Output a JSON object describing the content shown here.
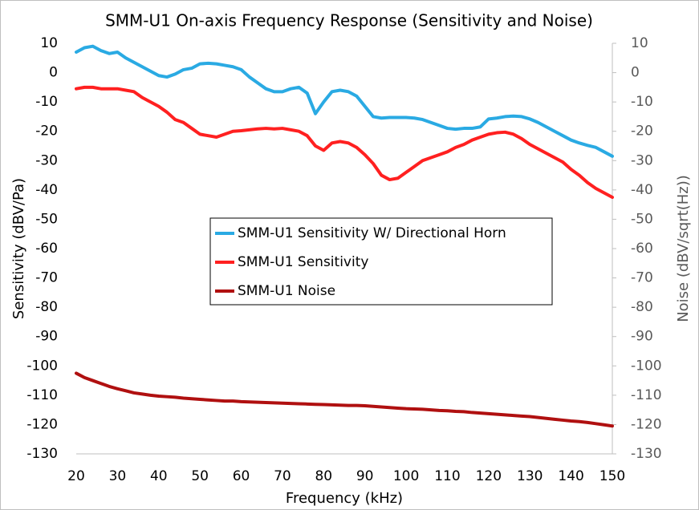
{
  "chart_data": {
    "type": "line",
    "title": "SMM-U1 On-axis Frequency Response (Sensitivity and Noise)",
    "x_label": "Frequency (kHz)",
    "y_label": "Sensitivity (dBV/Pa)",
    "y2_label": "Noise (dBV/sqrt(Hz))",
    "x": [
      20,
      22,
      24,
      26,
      28,
      30,
      32,
      34,
      36,
      38,
      40,
      42,
      44,
      46,
      48,
      50,
      52,
      54,
      56,
      58,
      60,
      62,
      64,
      66,
      68,
      70,
      72,
      74,
      76,
      78,
      80,
      82,
      84,
      86,
      88,
      90,
      92,
      94,
      96,
      98,
      100,
      102,
      104,
      106,
      108,
      110,
      112,
      114,
      116,
      118,
      120,
      122,
      124,
      126,
      128,
      130,
      132,
      134,
      136,
      138,
      140,
      142,
      144,
      146,
      148,
      150
    ],
    "xlim": [
      20,
      150
    ],
    "xticks": [
      20,
      30,
      40,
      50,
      60,
      70,
      80,
      90,
      100,
      110,
      120,
      130,
      140,
      150
    ],
    "ylim": [
      -130,
      10
    ],
    "yticks": [
      -130,
      -120,
      -110,
      -100,
      -90,
      -80,
      -70,
      -60,
      -50,
      -40,
      -30,
      -20,
      -10,
      0,
      10
    ],
    "y2lim": [
      -130,
      10
    ],
    "y2ticks": [
      -130,
      -120,
      -110,
      -100,
      -90,
      -80,
      -70,
      -60,
      -50,
      -40,
      -30,
      -20,
      -10,
      0,
      10
    ],
    "legend": "center",
    "series": [
      {
        "name": "SMM-U1 Sensitivity W/ Directional Horn",
        "color": "#2aaae3",
        "values": [
          7,
          8.5,
          9,
          7.5,
          6.5,
          7,
          5,
          3.5,
          2,
          0.5,
          -1,
          -1.5,
          -0.5,
          1,
          1.5,
          3,
          3.2,
          3,
          2.5,
          2,
          1,
          -1.5,
          -3.5,
          -5.5,
          -6.5,
          -6.5,
          -5.5,
          -5,
          -7,
          -14,
          -10,
          -6.5,
          -6,
          -6.5,
          -8,
          -11.5,
          -15,
          -15.5,
          -15.3,
          -15.3,
          -15.3,
          -15.5,
          -16,
          -17,
          -18,
          -19,
          -19.3,
          -19,
          -19,
          -18.5,
          -15.8,
          -15.5,
          -15,
          -14.8,
          -15,
          -15.8,
          -17,
          -18.5,
          -20,
          -21.5,
          -23,
          -24,
          -24.8,
          -25.5,
          -27,
          -28.5
        ]
      },
      {
        "name": "SMM-U1 Sensitivity",
        "color": "#ff2020",
        "values": [
          -5.5,
          -5,
          -5,
          -5.5,
          -5.5,
          -5.5,
          -6,
          -6.5,
          -8.5,
          -10,
          -11.5,
          -13.5,
          -16,
          -17,
          -19,
          -21,
          -21.5,
          -22,
          -21,
          -20,
          -19.8,
          -19.5,
          -19.2,
          -19,
          -19.2,
          -19,
          -19.5,
          -20,
          -21.5,
          -25,
          -26.5,
          -24,
          -23.5,
          -24,
          -25.5,
          -28,
          -31,
          -35,
          -36.5,
          -36,
          -34,
          -32,
          -30,
          -29,
          -28,
          -27,
          -25.5,
          -24.5,
          -23,
          -22,
          -21,
          -20.5,
          -20.3,
          -21,
          -22.5,
          -24.5,
          -26,
          -27.5,
          -29,
          -30.5,
          -33,
          -35,
          -37.5,
          -39.5,
          -41,
          -42.5
        ]
      },
      {
        "name": "SMM-U1 Noise",
        "color": "#b01010",
        "axis": "y2",
        "values": [
          -102.5,
          -104,
          -105,
          -106,
          -107,
          -107.8,
          -108.5,
          -109.2,
          -109.6,
          -110,
          -110.3,
          -110.5,
          -110.7,
          -111,
          -111.2,
          -111.4,
          -111.6,
          -111.8,
          -112,
          -112,
          -112.2,
          -112.3,
          -112.4,
          -112.5,
          -112.6,
          -112.7,
          -112.8,
          -112.9,
          -113,
          -113.1,
          -113.2,
          -113.3,
          -113.4,
          -113.5,
          -113.5,
          -113.6,
          -113.8,
          -114,
          -114.2,
          -114.4,
          -114.6,
          -114.7,
          -114.8,
          -115,
          -115.2,
          -115.3,
          -115.5,
          -115.6,
          -115.9,
          -116.1,
          -116.3,
          -116.5,
          -116.7,
          -116.9,
          -117.1,
          -117.3,
          -117.6,
          -117.9,
          -118.2,
          -118.5,
          -118.8,
          -119,
          -119.3,
          -119.7,
          -120.1,
          -120.5
        ]
      }
    ]
  }
}
